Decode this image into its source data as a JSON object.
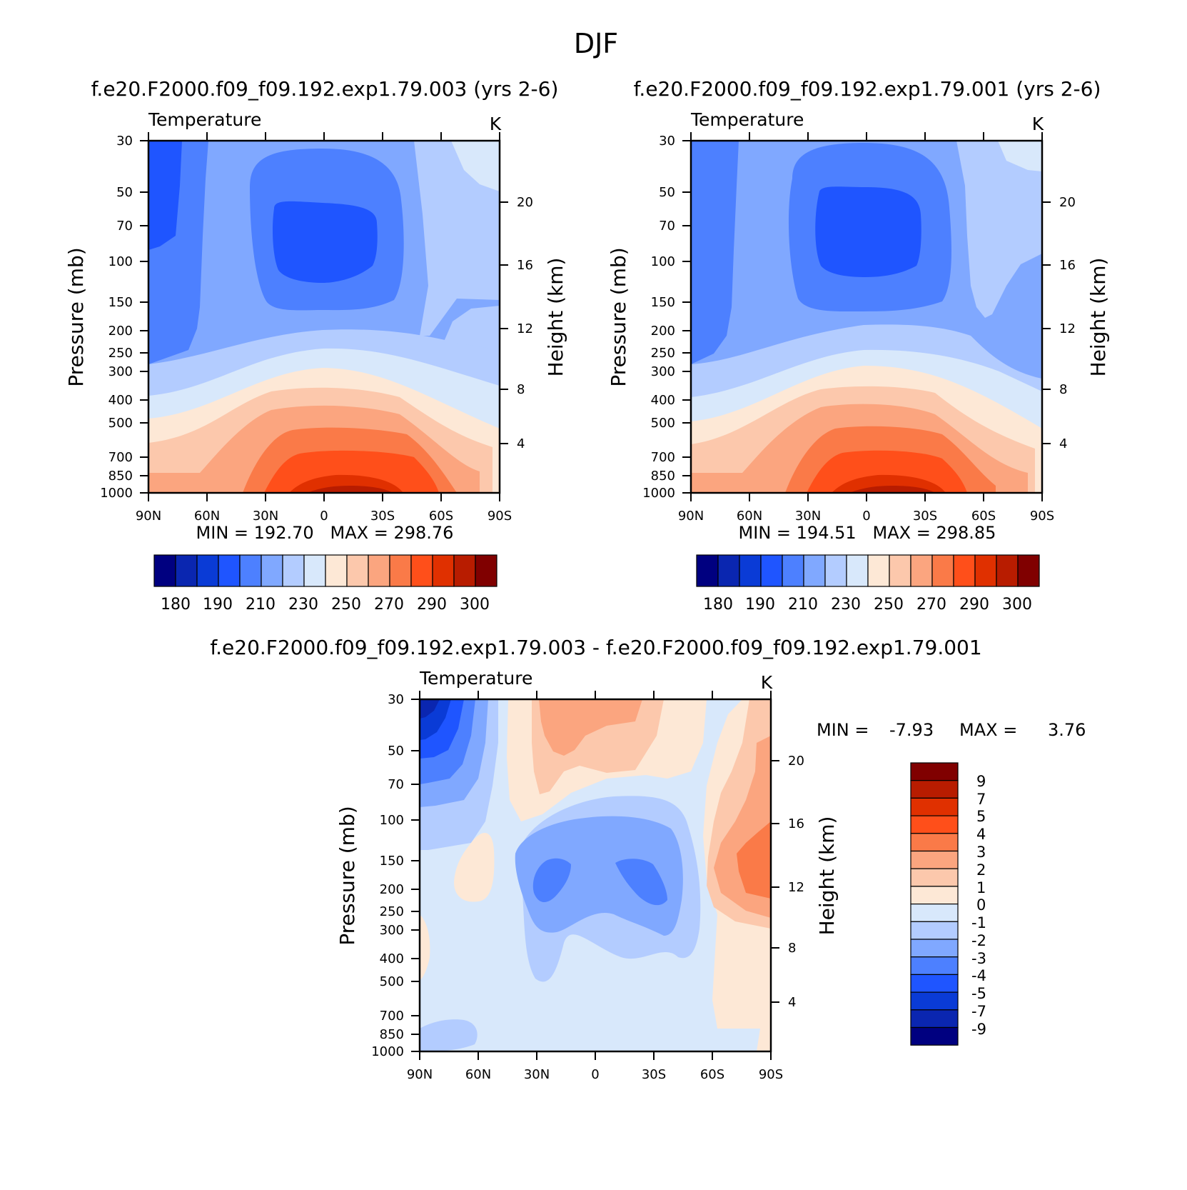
{
  "figure_title": "DJF",
  "chart_data": [
    {
      "type": "heatmap",
      "id": "panel-a",
      "case_title": "f.e20.F2000.f09_f09.192.exp1.79.003 (yrs 2-6)",
      "variable": "Temperature",
      "units": "K",
      "xlabel": "",
      "ylabel": "Pressure (mb)",
      "ylabel_right": "Height (km)",
      "x_ticks": [
        "90N",
        "60N",
        "30N",
        "0",
        "30S",
        "60S",
        "90S"
      ],
      "y_ticks": [
        "30",
        "50",
        "70",
        "100",
        "150",
        "200",
        "250",
        "300",
        "400",
        "500",
        "700",
        "850",
        "1000"
      ],
      "y2_ticks": [
        "4",
        "8",
        "12",
        "16",
        "20"
      ],
      "stats": "MIN = 192.70   MAX = 298.76",
      "contour_levels": [
        180,
        185,
        190,
        200,
        210,
        220,
        230,
        240,
        250,
        260,
        270,
        280,
        290,
        295,
        300
      ],
      "colorbar_labels": [
        "180",
        "190",
        "210",
        "230",
        "250",
        "270",
        "290",
        "300"
      ]
    },
    {
      "type": "heatmap",
      "id": "panel-b",
      "case_title": "f.e20.F2000.f09_f09.192.exp1.79.001 (yrs 2-6)",
      "variable": "Temperature",
      "units": "K",
      "xlabel": "",
      "ylabel": "Pressure (mb)",
      "ylabel_right": "Height (km)",
      "x_ticks": [
        "90N",
        "60N",
        "30N",
        "0",
        "30S",
        "60S",
        "90S"
      ],
      "y_ticks": [
        "30",
        "50",
        "70",
        "100",
        "150",
        "200",
        "250",
        "300",
        "400",
        "500",
        "700",
        "850",
        "1000"
      ],
      "y2_ticks": [
        "4",
        "8",
        "12",
        "16",
        "20"
      ],
      "stats": "MIN = 194.51   MAX = 298.85",
      "contour_levels": [
        180,
        185,
        190,
        200,
        210,
        220,
        230,
        240,
        250,
        260,
        270,
        280,
        290,
        295,
        300
      ],
      "colorbar_labels": [
        "180",
        "190",
        "210",
        "230",
        "250",
        "270",
        "290",
        "300"
      ]
    },
    {
      "type": "heatmap",
      "id": "panel-diff",
      "case_title": "f.e20.F2000.f09_f09.192.exp1.79.003 - f.e20.F2000.f09_f09.192.exp1.79.001",
      "variable": "Temperature",
      "units": "K",
      "xlabel": "",
      "ylabel": "Pressure (mb)",
      "ylabel_right": "Height (km)",
      "x_ticks": [
        "90N",
        "60N",
        "30N",
        "0",
        "30S",
        "60S",
        "90S"
      ],
      "y_ticks": [
        "30",
        "50",
        "70",
        "100",
        "150",
        "200",
        "250",
        "300",
        "400",
        "500",
        "700",
        "850",
        "1000"
      ],
      "y2_ticks": [
        "4",
        "8",
        "12",
        "16",
        "20"
      ],
      "stats_min_label": "MIN =",
      "stats_min": "-7.93",
      "stats_max_label": "MAX =",
      "stats_max": "3.76",
      "contour_levels": [
        -9,
        -7,
        -5,
        -4,
        -3,
        -2,
        -1,
        0,
        1,
        2,
        3,
        4,
        5,
        7,
        9
      ],
      "colorbar_labels": [
        "9",
        "7",
        "5",
        "4",
        "3",
        "2",
        "1",
        "0",
        "-1",
        "-2",
        "-3",
        "-4",
        "-5",
        "-7",
        "-9"
      ]
    }
  ],
  "colors": {
    "scale": [
      "#000080",
      "#0a26b0",
      "#0a3bd6",
      "#1f55ff",
      "#4d80ff",
      "#80a8ff",
      "#b3ccff",
      "#d8e8fb",
      "#fde8d6",
      "#fcc8ac",
      "#fba57f",
      "#fa7a48",
      "#ff4f1a",
      "#e03000",
      "#b81c00",
      "#800000"
    ]
  }
}
